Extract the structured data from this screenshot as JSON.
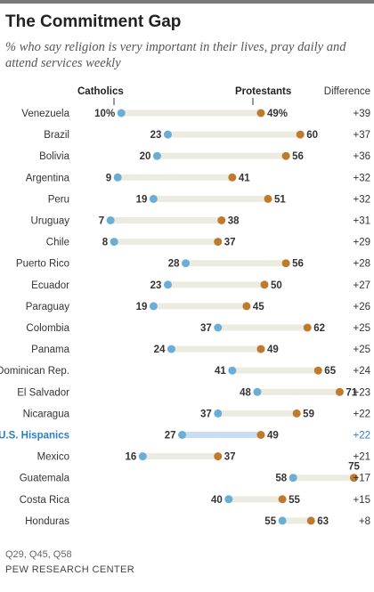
{
  "title": "The Commitment Gap",
  "subtitle": "% who say religion is very important in their lives, pray daily and attend services weekly",
  "headers": {
    "catholics": "Catholics",
    "protestants": "Protestants",
    "difference": "Difference"
  },
  "note": "Q29, Q45, Q58",
  "source": "PEW RESEARCH CENTER",
  "colors": {
    "catholic": "#6aaed6",
    "protestant": "#c07a2c",
    "bar": "#ecebe0",
    "highlight_bar": "#c7dff0",
    "highlight_text": "#2a7fc0"
  },
  "chart_data": {
    "type": "dumbbell",
    "title": "The Commitment Gap",
    "subtitle": "% who say religion is very important in their lives, pray daily and attend services weekly",
    "series": [
      {
        "name": "Catholics",
        "values": [
          10,
          23,
          20,
          9,
          19,
          7,
          8,
          28,
          23,
          19,
          37,
          24,
          41,
          48,
          37,
          27,
          16,
          58,
          40,
          55
        ]
      },
      {
        "name": "Protestants",
        "values": [
          49,
          60,
          56,
          41,
          51,
          38,
          37,
          56,
          50,
          45,
          62,
          49,
          65,
          71,
          59,
          49,
          37,
          75,
          55,
          63
        ]
      }
    ],
    "categories": [
      "Venezuela",
      "Brazil",
      "Bolivia",
      "Argentina",
      "Peru",
      "Uruguay",
      "Chile",
      "Puerto Rico",
      "Ecuador",
      "Paraguay",
      "Colombia",
      "Panama",
      "Dominican Rep.",
      "El Salvador",
      "Nicaragua",
      "U.S. Hispanics",
      "Mexico",
      "Guatemala",
      "Costa Rica",
      "Honduras"
    ],
    "catholic_labels": [
      "10%",
      "23",
      "20",
      "9",
      "19",
      "7",
      "8",
      "28",
      "23",
      "19",
      "37",
      "24",
      "41",
      "48",
      "37",
      "27",
      "16",
      "58",
      "40",
      "55"
    ],
    "protestant_labels": [
      "49%",
      "60",
      "56",
      "41",
      "51",
      "38",
      "37",
      "56",
      "50",
      "45",
      "62",
      "49",
      "65",
      "71",
      "59",
      "49",
      "37",
      "75",
      "55",
      "63"
    ],
    "differences": [
      "+39",
      "+37",
      "+36",
      "+32",
      "+32",
      "+31",
      "+29",
      "+28",
      "+27",
      "+26",
      "+25",
      "+25",
      "+24",
      "+23",
      "+22",
      "+22",
      "+21",
      "+17",
      "+15",
      "+8"
    ],
    "highlight": "U.S. Hispanics",
    "xlim": [
      0,
      80
    ]
  }
}
